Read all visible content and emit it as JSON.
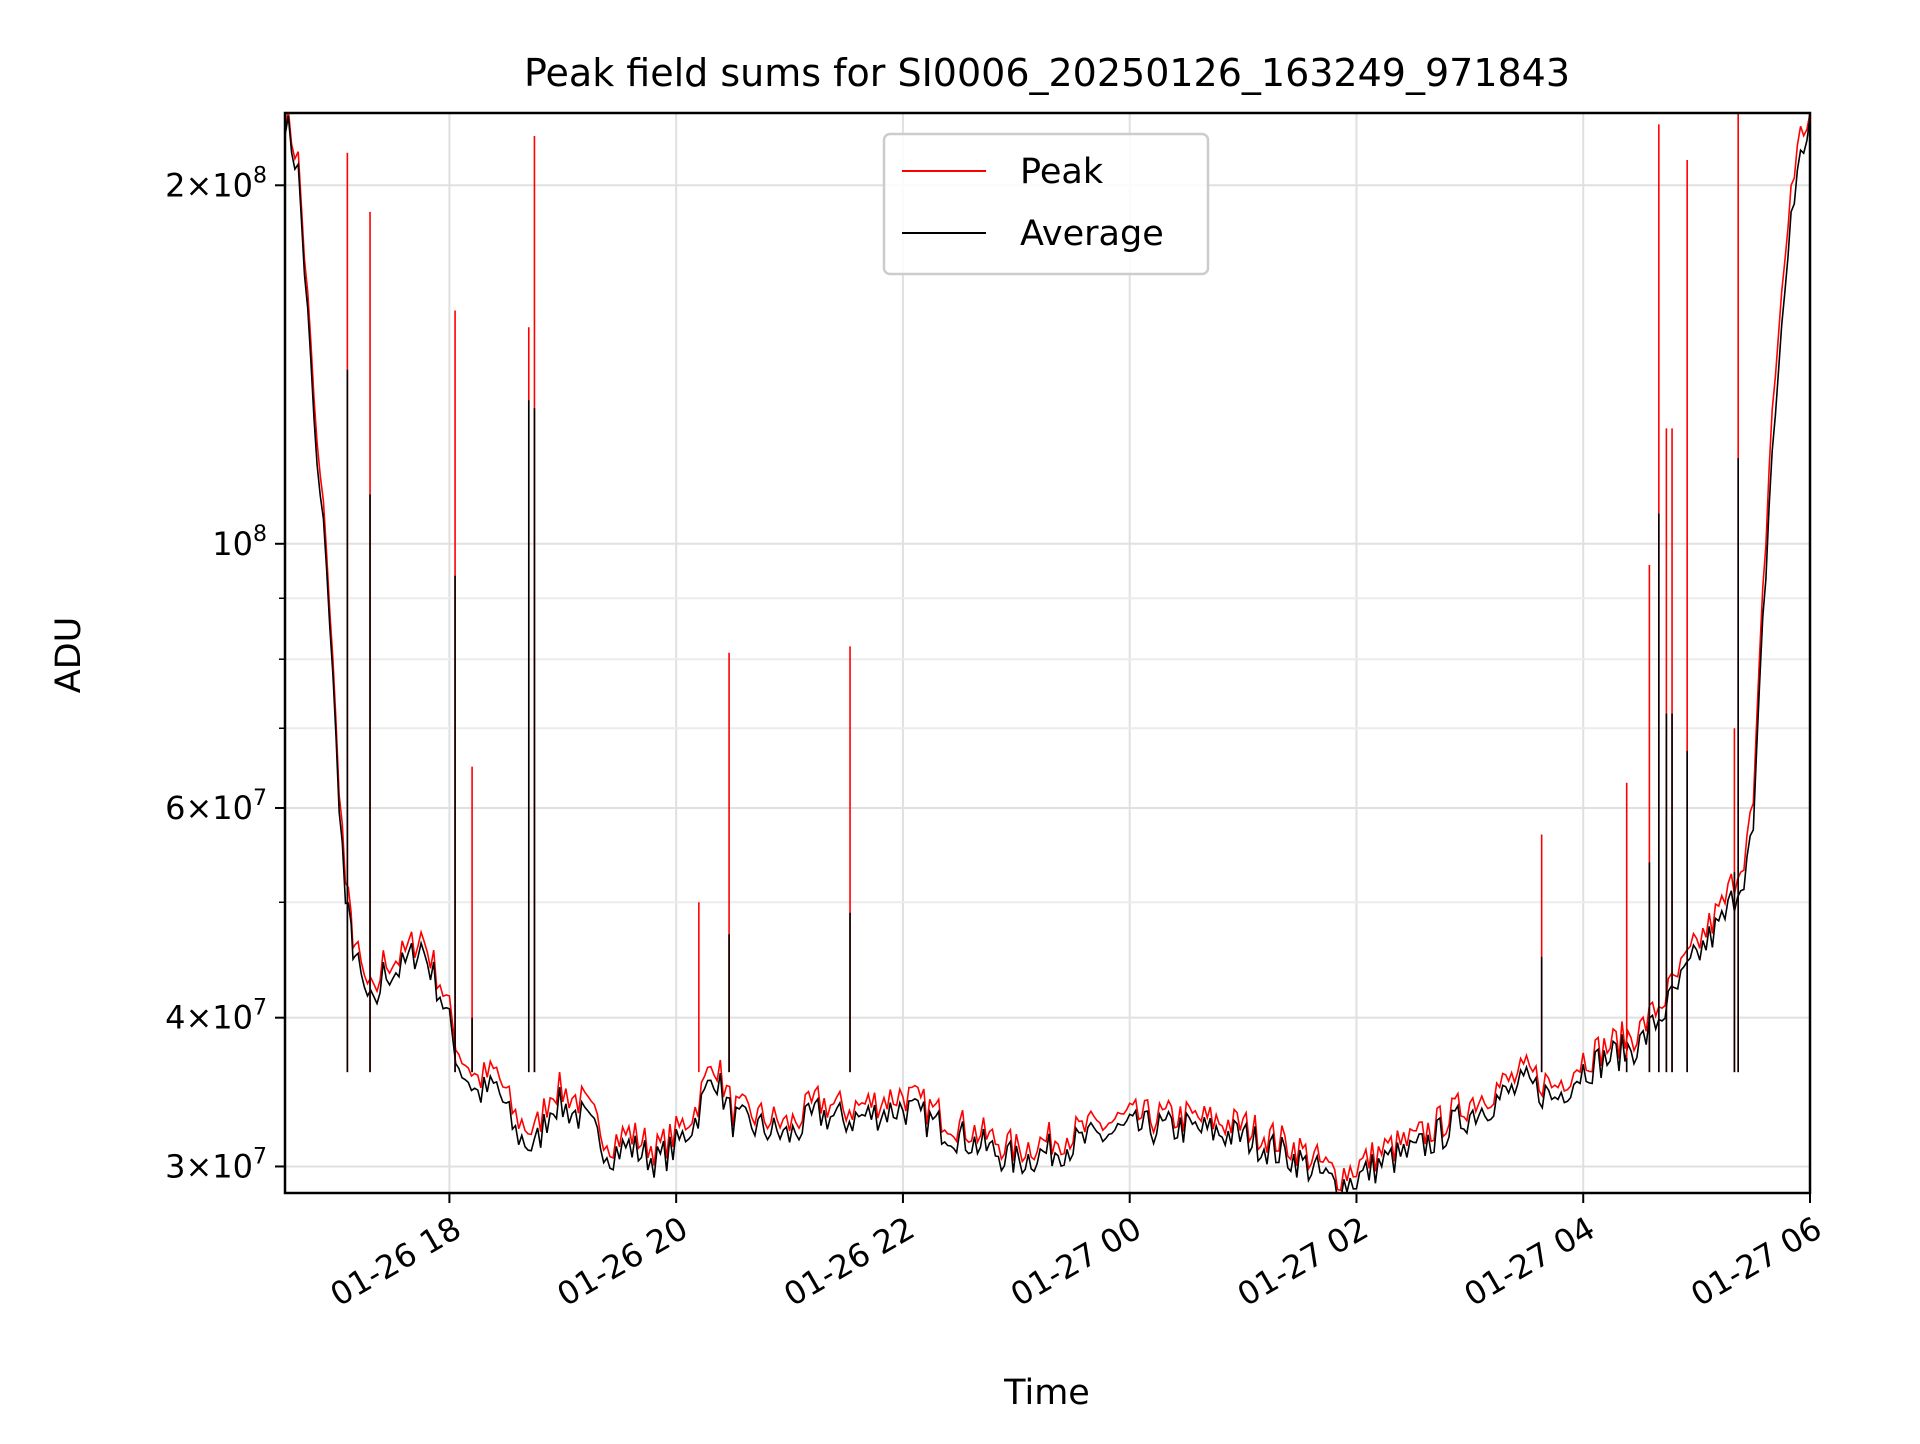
{
  "chart_data": {
    "type": "line",
    "title": "Peak field sums for SI0006_20250126_163249_971843",
    "xlabel": "Time",
    "ylabel": "ADU",
    "y_scale": "log",
    "ylim": [
      28500000,
      230000000
    ],
    "xlim": [
      "2025-01-26 16:33",
      "2025-01-27 06:00"
    ],
    "x_ticks": [
      "01-26 18",
      "01-26 20",
      "01-26 22",
      "01-27 00",
      "01-27 02",
      "01-27 04",
      "01-27 06"
    ],
    "x_tick_times": [
      "2025-01-26 18:00",
      "2025-01-26 20:00",
      "2025-01-26 22:00",
      "2025-01-27 00:00",
      "2025-01-27 02:00",
      "2025-01-27 04:00",
      "2025-01-27 06:00"
    ],
    "y_ticks": [
      {
        "value": 30000000,
        "mantissa": "3",
        "exp": "7"
      },
      {
        "value": 40000000,
        "mantissa": "4",
        "exp": "7"
      },
      {
        "value": 60000000,
        "mantissa": "6",
        "exp": "7"
      },
      {
        "value": 100000000,
        "mantissa": "",
        "exp": "8"
      },
      {
        "value": 200000000,
        "mantissa": "2",
        "exp": "8"
      }
    ],
    "y_minor_ticks": [
      50000000,
      70000000,
      80000000,
      90000000
    ],
    "grid": true,
    "legend_position": "top-center",
    "series": [
      {
        "name": "Peak",
        "color": "#ff0000",
        "x": [
          "2025-01-26 16:33",
          "2025-01-26 16:40",
          "2025-01-26 16:45",
          "2025-01-26 16:50",
          "2025-01-26 16:55",
          "2025-01-26 17:00",
          "2025-01-26 17:05",
          "2025-01-26 17:08",
          "2025-01-26 17:10",
          "2025-01-26 17:15",
          "2025-01-26 17:20",
          "2025-01-26 17:25",
          "2025-01-26 17:35",
          "2025-01-26 17:45",
          "2025-01-26 17:55",
          "2025-01-26 18:00",
          "2025-01-26 18:05",
          "2025-01-26 18:15",
          "2025-01-26 18:25",
          "2025-01-26 18:35",
          "2025-01-26 18:45",
          "2025-01-26 18:55",
          "2025-01-26 19:10",
          "2025-01-26 19:25",
          "2025-01-26 19:35",
          "2025-01-26 19:50",
          "2025-01-26 20:00",
          "2025-01-26 20:10",
          "2025-01-26 20:20",
          "2025-01-26 20:30",
          "2025-01-26 20:45",
          "2025-01-26 21:00",
          "2025-01-26 21:15",
          "2025-01-26 21:30",
          "2025-01-26 21:45",
          "2025-01-26 22:00",
          "2025-01-26 22:30",
          "2025-01-26 23:00",
          "2025-01-26 23:30",
          "2025-01-27 00:00",
          "2025-01-27 00:30",
          "2025-01-27 01:00",
          "2025-01-27 01:30",
          "2025-01-27 01:50",
          "2025-01-27 02:00",
          "2025-01-27 02:15",
          "2025-01-27 02:30",
          "2025-01-27 03:00",
          "2025-01-27 03:30",
          "2025-01-27 03:45",
          "2025-01-27 04:00",
          "2025-01-27 04:30",
          "2025-01-27 04:45",
          "2025-01-27 05:00",
          "2025-01-27 05:15",
          "2025-01-27 05:25",
          "2025-01-27 05:30",
          "2025-01-27 05:35",
          "2025-01-27 05:40",
          "2025-01-27 05:45",
          "2025-01-27 05:50",
          "2025-01-27 05:55",
          "2025-01-27 06:00"
        ],
        "y": [
          230000000,
          210000000,
          160000000,
          120000000,
          100000000,
          70000000,
          52000000,
          48000000,
          46000000,
          43000000,
          41500000,
          44500000,
          45000000,
          47000000,
          43000000,
          40500000,
          37500000,
          35500000,
          36000000,
          33000000,
          32000000,
          35000000,
          34000000,
          31500000,
          32000000,
          31000000,
          32000000,
          33500000,
          37000000,
          33500000,
          33000000,
          32500000,
          34000000,
          33500000,
          34000000,
          34500000,
          32500000,
          31000000,
          32000000,
          33000000,
          33000000,
          32500000,
          31000000,
          29500000,
          30000000,
          31000000,
          31500000,
          34000000,
          36000000,
          35000000,
          37000000,
          39000000,
          42000000,
          46000000,
          50000000,
          55000000,
          60000000,
          90000000,
          130000000,
          160000000,
          200000000,
          220000000,
          230000000
        ]
      },
      {
        "name": "Average",
        "color": "#000000",
        "x": [
          "2025-01-26 16:33",
          "2025-01-26 16:40",
          "2025-01-26 16:45",
          "2025-01-26 16:50",
          "2025-01-26 16:55",
          "2025-01-26 17:00",
          "2025-01-26 17:05",
          "2025-01-26 17:08",
          "2025-01-26 17:10",
          "2025-01-26 17:15",
          "2025-01-26 17:20",
          "2025-01-26 17:25",
          "2025-01-26 17:35",
          "2025-01-26 17:45",
          "2025-01-26 17:55",
          "2025-01-26 18:00",
          "2025-01-26 18:05",
          "2025-01-26 18:15",
          "2025-01-26 18:25",
          "2025-01-26 18:35",
          "2025-01-26 18:45",
          "2025-01-26 18:55",
          "2025-01-26 19:10",
          "2025-01-26 19:25",
          "2025-01-26 19:35",
          "2025-01-26 19:50",
          "2025-01-26 20:00",
          "2025-01-26 20:10",
          "2025-01-26 20:20",
          "2025-01-26 20:30",
          "2025-01-26 20:45",
          "2025-01-26 21:00",
          "2025-01-26 21:15",
          "2025-01-26 21:30",
          "2025-01-26 21:45",
          "2025-01-26 22:00",
          "2025-01-26 22:30",
          "2025-01-26 23:00",
          "2025-01-26 23:30",
          "2025-01-27 00:00",
          "2025-01-27 00:30",
          "2025-01-27 01:00",
          "2025-01-27 01:30",
          "2025-01-27 01:50",
          "2025-01-27 02:00",
          "2025-01-27 02:15",
          "2025-01-27 02:30",
          "2025-01-27 03:00",
          "2025-01-27 03:30",
          "2025-01-27 03:45",
          "2025-01-27 04:00",
          "2025-01-27 04:30",
          "2025-01-27 04:45",
          "2025-01-27 05:00",
          "2025-01-27 05:15",
          "2025-01-27 05:25",
          "2025-01-27 05:30",
          "2025-01-27 05:35",
          "2025-01-27 05:40",
          "2025-01-27 05:45",
          "2025-01-27 05:50",
          "2025-01-27 05:55",
          "2025-01-27 06:00"
        ],
        "y": [
          228000000,
          205000000,
          155000000,
          115000000,
          97000000,
          68000000,
          50000000,
          47000000,
          45000000,
          42000000,
          40500000,
          43500000,
          44000000,
          46000000,
          42000000,
          39500000,
          36500000,
          34500000,
          35000000,
          32000000,
          31000000,
          34000000,
          33000000,
          30800000,
          31200000,
          30300000,
          31200000,
          32800000,
          36000000,
          32800000,
          32300000,
          31800000,
          33200000,
          32800000,
          33200000,
          33600000,
          31800000,
          30300000,
          31300000,
          32300000,
          32300000,
          31800000,
          30300000,
          28900000,
          29300000,
          30300000,
          30800000,
          33200000,
          35200000,
          34200000,
          36200000,
          38000000,
          41000000,
          45000000,
          48500000,
          53000000,
          57000000,
          85000000,
          120000000,
          150000000,
          190000000,
          210000000,
          228000000
        ]
      }
    ],
    "spikes": [
      {
        "x": "2025-01-26 17:06",
        "peak": 213000000,
        "average": 140000000
      },
      {
        "x": "2025-01-26 17:18",
        "peak": 190000000,
        "average": 110000000
      },
      {
        "x": "2025-01-26 18:03",
        "peak": 157000000,
        "average": 94000000
      },
      {
        "x": "2025-01-26 18:12",
        "peak": 65000000,
        "average": 40000000
      },
      {
        "x": "2025-01-26 18:42",
        "peak": 152000000,
        "average": 132000000
      },
      {
        "x": "2025-01-26 18:45",
        "peak": 220000000,
        "average": 130000000
      },
      {
        "x": "2025-01-26 20:12",
        "peak": 50000000,
        "average": 36000000
      },
      {
        "x": "2025-01-26 20:28",
        "peak": 81000000,
        "average": 47000000
      },
      {
        "x": "2025-01-26 21:32",
        "peak": 82000000,
        "average": 49000000
      },
      {
        "x": "2025-01-27 03:38",
        "peak": 57000000,
        "average": 45000000
      },
      {
        "x": "2025-01-27 04:23",
        "peak": 63000000,
        "average": 37000000
      },
      {
        "x": "2025-01-27 04:35",
        "peak": 96000000,
        "average": 54000000
      },
      {
        "x": "2025-01-27 04:40",
        "peak": 225000000,
        "average": 106000000
      },
      {
        "x": "2025-01-27 04:44",
        "peak": 125000000,
        "average": 72000000
      },
      {
        "x": "2025-01-27 04:47",
        "peak": 125000000,
        "average": 72000000
      },
      {
        "x": "2025-01-27 04:55",
        "peak": 210000000,
        "average": 67000000
      },
      {
        "x": "2025-01-27 05:20",
        "peak": 70000000,
        "average": 53000000
      },
      {
        "x": "2025-01-27 05:22",
        "peak": 230000000,
        "average": 118000000
      }
    ]
  }
}
